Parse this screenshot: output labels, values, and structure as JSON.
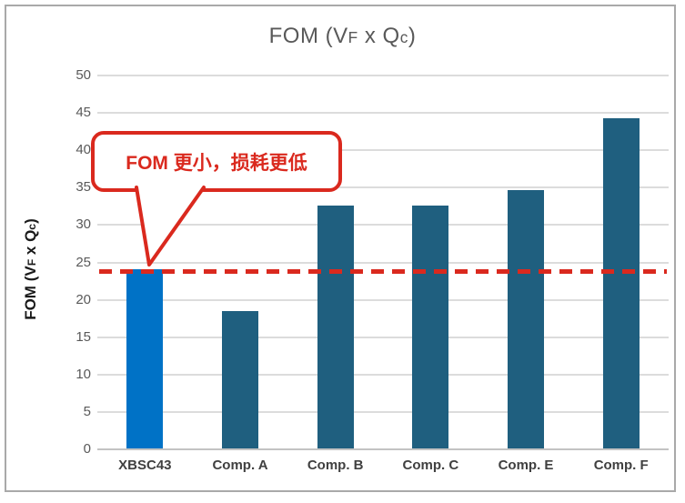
{
  "title": {
    "text": "FOM (VF x Qc)",
    "parts": {
      "pre": "FOM (V",
      "sub1": "F",
      "mid": " x Q",
      "sub2": "c",
      "post": ")"
    }
  },
  "y_axis_title": {
    "text": "FOM (VF x Qc)",
    "parts": {
      "pre": "FOM (V",
      "sub1": "F",
      "mid": " x Q",
      "sub2": "c",
      "post": ")"
    }
  },
  "callout": {
    "text": "FOM 更小，损耗更低",
    "color": "#da291e"
  },
  "colors": {
    "highlight_bar": "#0072c6",
    "default_bar": "#1f5f7f",
    "reference_line": "#da291e",
    "gridline": "#dcdcdc",
    "axis_text": "#595959",
    "border": "#a9a9a9"
  },
  "chart_data": {
    "type": "bar",
    "title": "FOM (VF x Qc)",
    "xlabel": "",
    "ylabel": "FOM (VF x Qc)",
    "categories": [
      "XBSC43",
      "Comp. A",
      "Comp. B",
      "Comp. C",
      "Comp. E",
      "Comp. F"
    ],
    "values": [
      24,
      18.4,
      32.5,
      32.5,
      34.5,
      44.2
    ],
    "bar_colors": [
      "#0072c6",
      "#1f5f7f",
      "#1f5f7f",
      "#1f5f7f",
      "#1f5f7f",
      "#1f5f7f"
    ],
    "ylim": [
      0,
      50
    ],
    "yticks": [
      0,
      5,
      10,
      15,
      20,
      25,
      30,
      35,
      40,
      45,
      50
    ],
    "grid": true,
    "legend": false,
    "reference_line": {
      "value": 23.8,
      "style": "dashed",
      "color": "#da291e",
      "meaning": "XBSC43 FOM level"
    },
    "annotation": {
      "text": "FOM 更小，损耗更低",
      "points_to": "XBSC43"
    }
  }
}
